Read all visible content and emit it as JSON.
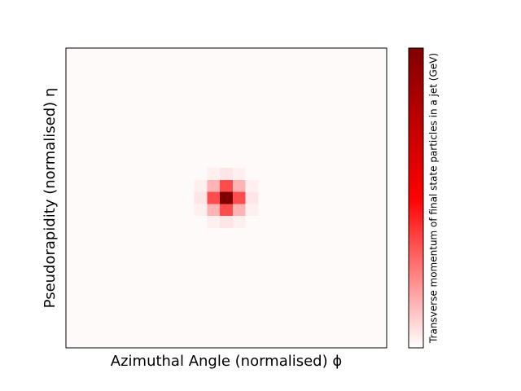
{
  "chart_data": {
    "type": "heatmap",
    "x_label": "Azimuthal Angle (normalised) ϕ",
    "y_label": "Pseudorapidity (normalised) η",
    "colorbar_label": "Transverse momentum of final state particles in a jet (GeV)",
    "colormap": [
      "#ffffff",
      "#ff0000",
      "#800000"
    ],
    "zlim": [
      0,
      1
    ],
    "values": [
      [
        0.01,
        0.01,
        0.01,
        0.01,
        0.01,
        0.01,
        0.01,
        0.01,
        0.01,
        0.01,
        0.01,
        0.01,
        0.01,
        0.01,
        0.01,
        0.01,
        0.01,
        0.01,
        0.01,
        0.01,
        0.01,
        0.01,
        0.01,
        0.01,
        0.01
      ],
      [
        0.01,
        0.01,
        0.01,
        0.01,
        0.01,
        0.01,
        0.01,
        0.01,
        0.01,
        0.01,
        0.01,
        0.01,
        0.01,
        0.01,
        0.01,
        0.01,
        0.01,
        0.01,
        0.01,
        0.01,
        0.01,
        0.01,
        0.01,
        0.01,
        0.01
      ],
      [
        0.01,
        0.01,
        0.01,
        0.01,
        0.01,
        0.01,
        0.01,
        0.01,
        0.01,
        0.01,
        0.01,
        0.01,
        0.01,
        0.01,
        0.01,
        0.01,
        0.01,
        0.01,
        0.01,
        0.01,
        0.01,
        0.01,
        0.01,
        0.01,
        0.01
      ],
      [
        0.01,
        0.01,
        0.01,
        0.01,
        0.01,
        0.01,
        0.01,
        0.01,
        0.01,
        0.01,
        0.01,
        0.01,
        0.01,
        0.01,
        0.01,
        0.01,
        0.01,
        0.01,
        0.01,
        0.01,
        0.01,
        0.01,
        0.01,
        0.01,
        0.01
      ],
      [
        0.01,
        0.01,
        0.01,
        0.01,
        0.01,
        0.01,
        0.01,
        0.01,
        0.01,
        0.01,
        0.01,
        0.01,
        0.01,
        0.01,
        0.01,
        0.01,
        0.01,
        0.01,
        0.01,
        0.01,
        0.01,
        0.01,
        0.01,
        0.01,
        0.01
      ],
      [
        0.01,
        0.01,
        0.01,
        0.01,
        0.01,
        0.01,
        0.01,
        0.01,
        0.01,
        0.01,
        0.01,
        0.01,
        0.01,
        0.01,
        0.01,
        0.01,
        0.01,
        0.01,
        0.01,
        0.01,
        0.01,
        0.01,
        0.01,
        0.01,
        0.01
      ],
      [
        0.01,
        0.01,
        0.01,
        0.01,
        0.01,
        0.01,
        0.01,
        0.01,
        0.01,
        0.01,
        0.01,
        0.01,
        0.01,
        0.01,
        0.01,
        0.01,
        0.01,
        0.01,
        0.01,
        0.01,
        0.01,
        0.01,
        0.01,
        0.01,
        0.01
      ],
      [
        0.01,
        0.01,
        0.01,
        0.01,
        0.01,
        0.01,
        0.01,
        0.01,
        0.01,
        0.01,
        0.01,
        0.01,
        0.01,
        0.01,
        0.01,
        0.01,
        0.01,
        0.01,
        0.01,
        0.01,
        0.01,
        0.01,
        0.01,
        0.01,
        0.01
      ],
      [
        0.01,
        0.01,
        0.01,
        0.01,
        0.01,
        0.01,
        0.01,
        0.01,
        0.01,
        0.01,
        0.01,
        0.01,
        0.01,
        0.01,
        0.01,
        0.01,
        0.01,
        0.01,
        0.01,
        0.01,
        0.01,
        0.01,
        0.01,
        0.01,
        0.01
      ],
      [
        0.01,
        0.01,
        0.01,
        0.01,
        0.01,
        0.01,
        0.01,
        0.01,
        0.01,
        0.01,
        0.01,
        0.01,
        0.01,
        0.01,
        0.01,
        0.01,
        0.01,
        0.01,
        0.01,
        0.01,
        0.01,
        0.01,
        0.01,
        0.01,
        0.01
      ],
      [
        0.01,
        0.01,
        0.01,
        0.01,
        0.01,
        0.01,
        0.01,
        0.01,
        0.01,
        0.01,
        0.01,
        0.03,
        0.05,
        0.03,
        0.01,
        0.01,
        0.01,
        0.01,
        0.01,
        0.01,
        0.01,
        0.01,
        0.01,
        0.01,
        0.01
      ],
      [
        0.01,
        0.01,
        0.01,
        0.01,
        0.01,
        0.01,
        0.01,
        0.01,
        0.01,
        0.01,
        0.03,
        0.15,
        0.35,
        0.15,
        0.03,
        0.01,
        0.01,
        0.01,
        0.01,
        0.01,
        0.01,
        0.01,
        0.01,
        0.01,
        0.01
      ],
      [
        0.01,
        0.01,
        0.01,
        0.01,
        0.01,
        0.01,
        0.01,
        0.01,
        0.01,
        0.01,
        0.05,
        0.35,
        1,
        0.35,
        0.05,
        0.01,
        0.01,
        0.01,
        0.01,
        0.01,
        0.01,
        0.01,
        0.01,
        0.01,
        0.01
      ],
      [
        0.01,
        0.01,
        0.01,
        0.01,
        0.01,
        0.01,
        0.01,
        0.01,
        0.01,
        0.01,
        0.03,
        0.15,
        0.35,
        0.15,
        0.03,
        0.01,
        0.01,
        0.01,
        0.01,
        0.01,
        0.01,
        0.01,
        0.01,
        0.01,
        0.01
      ],
      [
        0.01,
        0.01,
        0.01,
        0.01,
        0.01,
        0.01,
        0.01,
        0.01,
        0.01,
        0.01,
        0.01,
        0.03,
        0.05,
        0.03,
        0.01,
        0.01,
        0.01,
        0.01,
        0.01,
        0.01,
        0.01,
        0.01,
        0.01,
        0.01,
        0.01
      ],
      [
        0.01,
        0.01,
        0.01,
        0.01,
        0.01,
        0.01,
        0.01,
        0.01,
        0.01,
        0.01,
        0.01,
        0.01,
        0.01,
        0.01,
        0.01,
        0.01,
        0.01,
        0.01,
        0.01,
        0.01,
        0.01,
        0.01,
        0.01,
        0.01,
        0.01
      ],
      [
        0.01,
        0.01,
        0.01,
        0.01,
        0.01,
        0.01,
        0.01,
        0.01,
        0.01,
        0.01,
        0.01,
        0.01,
        0.01,
        0.01,
        0.01,
        0.01,
        0.01,
        0.01,
        0.01,
        0.01,
        0.01,
        0.01,
        0.01,
        0.01,
        0.01
      ],
      [
        0.01,
        0.01,
        0.01,
        0.01,
        0.01,
        0.01,
        0.01,
        0.01,
        0.01,
        0.01,
        0.01,
        0.01,
        0.01,
        0.01,
        0.01,
        0.01,
        0.01,
        0.01,
        0.01,
        0.01,
        0.01,
        0.01,
        0.01,
        0.01,
        0.01
      ],
      [
        0.01,
        0.01,
        0.01,
        0.01,
        0.01,
        0.01,
        0.01,
        0.01,
        0.01,
        0.01,
        0.01,
        0.01,
        0.01,
        0.01,
        0.01,
        0.01,
        0.01,
        0.01,
        0.01,
        0.01,
        0.01,
        0.01,
        0.01,
        0.01,
        0.01
      ],
      [
        0.01,
        0.01,
        0.01,
        0.01,
        0.01,
        0.01,
        0.01,
        0.01,
        0.01,
        0.01,
        0.01,
        0.01,
        0.01,
        0.01,
        0.01,
        0.01,
        0.01,
        0.01,
        0.01,
        0.01,
        0.01,
        0.01,
        0.01,
        0.01,
        0.01
      ],
      [
        0.01,
        0.01,
        0.01,
        0.01,
        0.01,
        0.01,
        0.01,
        0.01,
        0.01,
        0.01,
        0.01,
        0.01,
        0.01,
        0.01,
        0.01,
        0.01,
        0.01,
        0.01,
        0.01,
        0.01,
        0.01,
        0.01,
        0.01,
        0.01,
        0.01
      ],
      [
        0.01,
        0.01,
        0.01,
        0.01,
        0.01,
        0.01,
        0.01,
        0.01,
        0.01,
        0.01,
        0.01,
        0.01,
        0.01,
        0.01,
        0.01,
        0.01,
        0.01,
        0.01,
        0.01,
        0.01,
        0.01,
        0.01,
        0.01,
        0.01,
        0.01
      ],
      [
        0.01,
        0.01,
        0.01,
        0.01,
        0.01,
        0.01,
        0.01,
        0.01,
        0.01,
        0.01,
        0.01,
        0.01,
        0.01,
        0.01,
        0.01,
        0.01,
        0.01,
        0.01,
        0.01,
        0.01,
        0.01,
        0.01,
        0.01,
        0.01,
        0.01
      ],
      [
        0.01,
        0.01,
        0.01,
        0.01,
        0.01,
        0.01,
        0.01,
        0.01,
        0.01,
        0.01,
        0.01,
        0.01,
        0.01,
        0.01,
        0.01,
        0.01,
        0.01,
        0.01,
        0.01,
        0.01,
        0.01,
        0.01,
        0.01,
        0.01,
        0.01
      ],
      [
        0.01,
        0.01,
        0.01,
        0.01,
        0.01,
        0.01,
        0.01,
        0.01,
        0.01,
        0.01,
        0.01,
        0.01,
        0.01,
        0.01,
        0.01,
        0.01,
        0.01,
        0.01,
        0.01,
        0.01,
        0.01,
        0.01,
        0.01,
        0.01,
        0.01
      ]
    ]
  }
}
